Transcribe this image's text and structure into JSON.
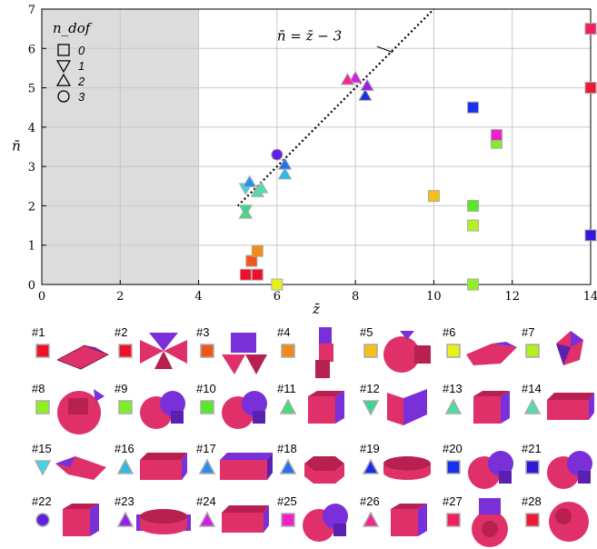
{
  "chart_data": {
    "type": "scatter",
    "title": "",
    "xlabel": "z̄",
    "ylabel": "n̄",
    "xlim": [
      0,
      14
    ],
    "ylim": [
      0,
      7
    ],
    "xticks": [
      0,
      2,
      4,
      6,
      8,
      10,
      12,
      14
    ],
    "yticks": [
      0,
      1,
      2,
      3,
      4,
      5,
      6,
      7
    ],
    "grid": true,
    "shaded_region": {
      "x": [
        0,
        4
      ],
      "color": "#dcdcdc"
    },
    "fit_line": {
      "label": "n̄ = z̄ − 3",
      "x": [
        5.0,
        10.0
      ],
      "y": [
        2.0,
        7.0
      ],
      "style": "dotted"
    },
    "legend": {
      "title": "n_dof",
      "placement": "top-left",
      "entries": [
        {
          "marker": "square",
          "label": "0"
        },
        {
          "marker": "triangle-down",
          "label": "1"
        },
        {
          "marker": "triangle-up",
          "label": "2"
        },
        {
          "marker": "circle",
          "label": "3"
        }
      ]
    },
    "points": [
      {
        "id": 1,
        "x": 5.2,
        "y": 0.25,
        "marker": "square",
        "color": "#f0102c"
      },
      {
        "id": 2,
        "x": 5.5,
        "y": 0.25,
        "marker": "square",
        "color": "#f0102c"
      },
      {
        "id": 3,
        "x": 5.35,
        "y": 0.6,
        "marker": "square",
        "color": "#f05518"
      },
      {
        "id": 4,
        "x": 5.5,
        "y": 0.85,
        "marker": "square",
        "color": "#f08a18"
      },
      {
        "id": 5,
        "x": 10.0,
        "y": 2.25,
        "marker": "square",
        "color": "#f5c01a"
      },
      {
        "id": 6,
        "x": 6.0,
        "y": 0.0,
        "marker": "square",
        "color": "#e6f01a"
      },
      {
        "id": 7,
        "x": 11.0,
        "y": 1.5,
        "marker": "square",
        "color": "#b4f01e"
      },
      {
        "id": 8,
        "x": 11.0,
        "y": 0.0,
        "marker": "square",
        "color": "#8ef020"
      },
      {
        "id": 9,
        "x": 11.6,
        "y": 3.6,
        "marker": "square",
        "color": "#7cf024"
      },
      {
        "id": 10,
        "x": 11.0,
        "y": 2.0,
        "marker": "square",
        "color": "#58e828"
      },
      {
        "id": 11,
        "x": 5.2,
        "y": 1.8,
        "marker": "triangle-up",
        "color": "#40e070"
      },
      {
        "id": 12,
        "x": 5.2,
        "y": 1.9,
        "marker": "triangle-down",
        "color": "#3cd890"
      },
      {
        "id": 13,
        "x": 5.5,
        "y": 2.35,
        "marker": "triangle-up",
        "color": "#48e0a0"
      },
      {
        "id": 14,
        "x": 5.6,
        "y": 2.45,
        "marker": "triangle-up",
        "color": "#50e0b0"
      },
      {
        "id": 15,
        "x": 5.2,
        "y": 2.45,
        "marker": "triangle-down",
        "color": "#38d8e8"
      },
      {
        "id": 16,
        "x": 6.2,
        "y": 2.8,
        "marker": "triangle-up",
        "color": "#30b8e8"
      },
      {
        "id": 17,
        "x": 5.3,
        "y": 2.6,
        "marker": "triangle-up",
        "color": "#2a90f0"
      },
      {
        "id": 18,
        "x": 6.2,
        "y": 3.05,
        "marker": "triangle-up",
        "color": "#2570f0"
      },
      {
        "id": 19,
        "x": 8.25,
        "y": 4.8,
        "marker": "triangle-up",
        "color": "#1a30e0"
      },
      {
        "id": 20,
        "x": 11.0,
        "y": 4.5,
        "marker": "square",
        "color": "#1a30f0"
      },
      {
        "id": 21,
        "x": 14.0,
        "y": 1.25,
        "marker": "square",
        "color": "#3018d8"
      },
      {
        "id": 22,
        "x": 6.0,
        "y": 3.3,
        "marker": "circle",
        "color": "#6020e0"
      },
      {
        "id": 23,
        "x": 8.3,
        "y": 5.05,
        "marker": "triangle-up",
        "color": "#9a20e8"
      },
      {
        "id": 24,
        "x": 8.0,
        "y": 5.25,
        "marker": "triangle-up",
        "color": "#d020e0"
      },
      {
        "id": 25,
        "x": 11.6,
        "y": 3.8,
        "marker": "square",
        "color": "#f020c8"
      },
      {
        "id": 26,
        "x": 7.8,
        "y": 5.2,
        "marker": "triangle-up",
        "color": "#f02890"
      },
      {
        "id": 27,
        "x": 14.0,
        "y": 6.5,
        "marker": "square",
        "color": "#f0205c"
      },
      {
        "id": 28,
        "x": 14.0,
        "y": 5.0,
        "marker": "square",
        "color": "#f01838"
      }
    ]
  },
  "catalog": [
    {
      "label": "#1",
      "shape": "bipyramid"
    },
    {
      "label": "#2",
      "shape": "bowtie"
    },
    {
      "label": "#3",
      "shape": "cube-stack"
    },
    {
      "label": "#4",
      "shape": "zigzag"
    },
    {
      "label": "#5",
      "shape": "ball-box"
    },
    {
      "label": "#6",
      "shape": "wedge"
    },
    {
      "label": "#7",
      "shape": "gem"
    },
    {
      "label": "#8",
      "shape": "ball-big"
    },
    {
      "label": "#9",
      "shape": "ball-cluster"
    },
    {
      "label": "#10",
      "shape": "ball-cluster"
    },
    {
      "label": "#11",
      "shape": "cube"
    },
    {
      "label": "#12",
      "shape": "fold"
    },
    {
      "label": "#13",
      "shape": "cube"
    },
    {
      "label": "#14",
      "shape": "slab"
    },
    {
      "label": "#15",
      "shape": "wedge-long"
    },
    {
      "label": "#16",
      "shape": "slab"
    },
    {
      "label": "#17",
      "shape": "slab-wide"
    },
    {
      "label": "#18",
      "shape": "hex-prism"
    },
    {
      "label": "#19",
      "shape": "disk"
    },
    {
      "label": "#20",
      "shape": "ball-cluster"
    },
    {
      "label": "#21",
      "shape": "ball-cluster"
    },
    {
      "label": "#22",
      "shape": "cube"
    },
    {
      "label": "#23",
      "shape": "disk-ring"
    },
    {
      "label": "#24",
      "shape": "slab"
    },
    {
      "label": "#25",
      "shape": "ball-cluster"
    },
    {
      "label": "#26",
      "shape": "cube"
    },
    {
      "label": "#27",
      "shape": "ball-tower"
    },
    {
      "label": "#28",
      "shape": "ball"
    }
  ]
}
